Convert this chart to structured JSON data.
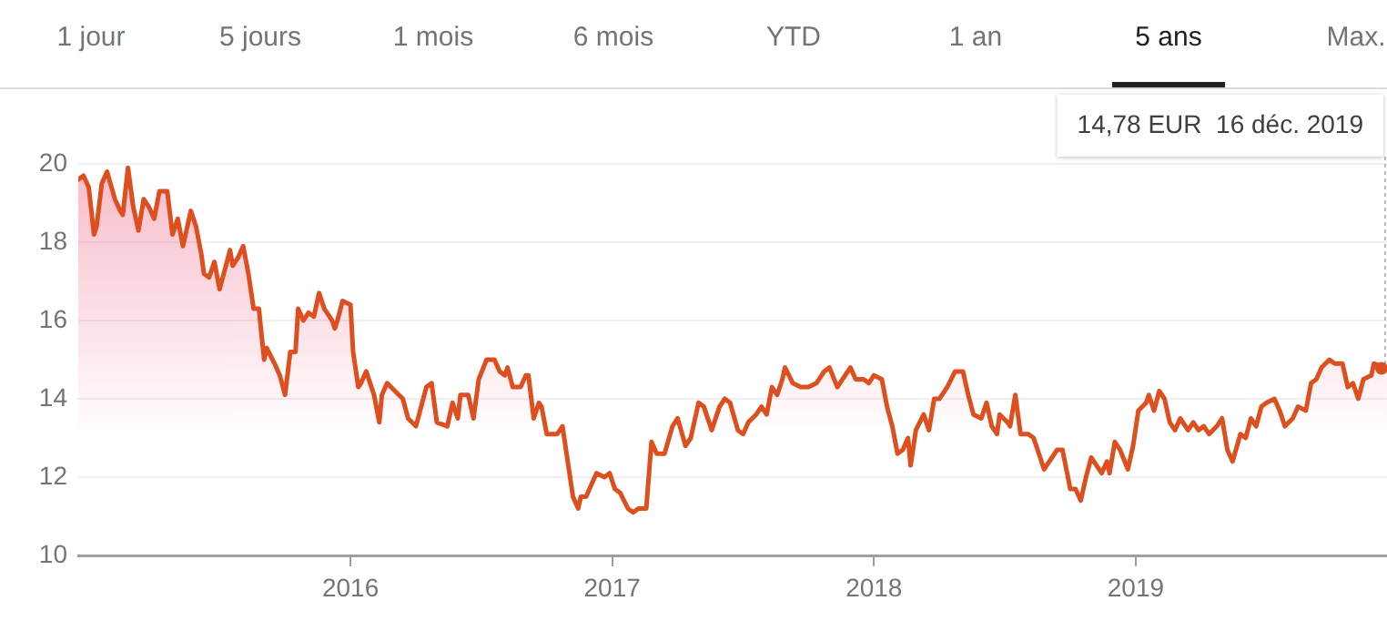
{
  "chart_data": {
    "type": "area",
    "annotations": [
      "1 jour",
      "5 jours",
      "1 mois",
      "6 mois",
      "YTD",
      "1 an",
      "5 ans",
      "Max.",
      {
        "text": "14,78 EUR  16 déc. 2019",
        "x": 2019.96,
        "y": 14.78
      }
    ],
    "xlim": [
      2014.96,
      2019.96
    ],
    "xticks": [
      2016,
      2017,
      2018,
      2019
    ],
    "ylim": [
      10,
      20
    ],
    "yticks": [
      10,
      12,
      14,
      16,
      18,
      20
    ],
    "grid": "y",
    "series": [
      {
        "color": "#dd4f1e",
        "x": [
          2014.96,
          2014.98,
          2015.0,
          2015.02,
          2015.03,
          2015.05,
          2015.07,
          2015.1,
          2015.12,
          2015.13,
          2015.15,
          2015.17,
          2015.19,
          2015.21,
          2015.23,
          2015.25,
          2015.27,
          2015.3,
          2015.32,
          2015.34,
          2015.36,
          2015.39,
          2015.41,
          2015.43,
          2015.44,
          2015.46,
          2015.48,
          2015.5,
          2015.52,
          2015.54,
          2015.55,
          2015.57,
          2015.59,
          2015.61,
          2015.63,
          2015.65,
          2015.67,
          2015.68,
          2015.71,
          2015.73,
          2015.75,
          2015.77,
          2015.79,
          2015.8,
          2015.82,
          2015.84,
          2015.86,
          2015.88,
          2015.9,
          2015.93,
          2015.94,
          2015.95,
          2015.97,
          2016.0,
          2016.01,
          2016.03,
          2016.04,
          2016.06,
          2016.09,
          2016.11,
          2016.12,
          2016.14,
          2016.17,
          2016.2,
          2016.22,
          2016.25,
          2016.27,
          2016.29,
          2016.31,
          2016.33,
          2016.37,
          2016.39,
          2016.41,
          2016.42,
          2016.45,
          2016.47,
          2016.49,
          2016.52,
          2016.55,
          2016.57,
          2016.59,
          2016.6,
          2016.62,
          2016.65,
          2016.67,
          2016.68,
          2016.7,
          2016.72,
          2016.73,
          2016.75,
          2016.79,
          2016.81,
          2016.83,
          2016.85,
          2016.87,
          2016.88,
          2016.9,
          2016.92,
          2016.94,
          2016.97,
          2016.99,
          2017.01,
          2017.03,
          2017.06,
          2017.08,
          2017.1,
          2017.13,
          2017.15,
          2017.17,
          2017.2,
          2017.23,
          2017.25,
          2017.28,
          2017.3,
          2017.33,
          2017.35,
          2017.38,
          2017.41,
          2017.43,
          2017.45,
          2017.48,
          2017.5,
          2017.52,
          2017.55,
          2017.57,
          2017.59,
          2017.61,
          2017.63,
          2017.65,
          2017.66,
          2017.69,
          2017.72,
          2017.75,
          2017.78,
          2017.81,
          2017.83,
          2017.86,
          2017.89,
          2017.91,
          2017.93,
          2017.96,
          2017.98,
          2018.0,
          2018.03,
          2018.05,
          2018.07,
          2018.09,
          2018.11,
          2018.13,
          2018.14,
          2018.16,
          2018.19,
          2018.21,
          2018.23,
          2018.25,
          2018.28,
          2018.31,
          2018.34,
          2018.36,
          2018.38,
          2018.41,
          2018.43,
          2018.45,
          2018.47,
          2018.48,
          2018.51,
          2018.52,
          2018.54,
          2018.56,
          2018.59,
          2018.61,
          2018.65,
          2018.68,
          2018.7,
          2018.72,
          2018.75,
          2018.77,
          2018.79,
          2018.81,
          2018.83,
          2018.86,
          2018.87,
          2018.89,
          2018.9,
          2018.92,
          2018.94,
          2018.97,
          2018.99,
          2019.01,
          2019.04,
          2019.05,
          2019.07,
          2019.09,
          2019.11,
          2019.13,
          2019.15,
          2019.17,
          2019.2,
          2019.22,
          2019.24,
          2019.26,
          2019.28,
          2019.31,
          2019.33,
          2019.35,
          2019.37,
          2019.4,
          2019.42,
          2019.44,
          2019.46,
          2019.48,
          2019.5,
          2019.53,
          2019.55,
          2019.57,
          2019.6,
          2019.62,
          2019.65,
          2019.67,
          2019.69,
          2019.71,
          2019.74,
          2019.76,
          2019.79,
          2019.81,
          2019.83,
          2019.85,
          2019.87,
          2019.9,
          2019.91,
          2019.96
        ],
        "values": [
          19.6,
          19.7,
          19.4,
          18.2,
          18.4,
          19.5,
          19.8,
          19.1,
          18.8,
          18.7,
          19.9,
          18.9,
          18.3,
          19.1,
          18.9,
          18.6,
          19.3,
          19.3,
          18.2,
          18.6,
          17.9,
          18.8,
          18.4,
          17.7,
          17.2,
          17.1,
          17.5,
          16.8,
          17.3,
          17.8,
          17.4,
          17.6,
          17.9,
          17.2,
          16.3,
          16.3,
          15.0,
          15.3,
          14.9,
          14.6,
          14.1,
          15.2,
          15.2,
          16.3,
          16.0,
          16.2,
          16.1,
          16.7,
          16.3,
          16.0,
          15.8,
          16.0,
          16.5,
          16.4,
          15.2,
          14.3,
          14.4,
          14.7,
          14.1,
          13.4,
          14.1,
          14.4,
          14.2,
          14.0,
          13.5,
          13.3,
          13.8,
          14.3,
          14.4,
          13.4,
          13.3,
          13.9,
          13.5,
          14.1,
          14.1,
          13.5,
          14.5,
          15.0,
          15.0,
          14.7,
          14.6,
          14.8,
          14.3,
          14.3,
          14.6,
          14.6,
          13.5,
          13.9,
          13.8,
          13.1,
          13.1,
          13.3,
          12.4,
          11.5,
          11.2,
          11.5,
          11.5,
          11.8,
          12.1,
          12.0,
          12.1,
          11.7,
          11.6,
          11.2,
          11.1,
          11.2,
          11.2,
          12.9,
          12.6,
          12.6,
          13.3,
          13.5,
          12.8,
          13.0,
          13.9,
          13.8,
          13.2,
          13.8,
          14.0,
          13.9,
          13.2,
          13.1,
          13.4,
          13.6,
          13.8,
          13.6,
          14.3,
          14.1,
          14.5,
          14.8,
          14.4,
          14.3,
          14.3,
          14.4,
          14.7,
          14.8,
          14.3,
          14.6,
          14.8,
          14.5,
          14.5,
          14.4,
          14.6,
          14.5,
          13.8,
          13.3,
          12.6,
          12.7,
          13.0,
          12.3,
          13.2,
          13.6,
          13.2,
          14.0,
          14.0,
          14.3,
          14.7,
          14.7,
          14.1,
          13.6,
          13.5,
          13.9,
          13.3,
          13.1,
          13.6,
          13.4,
          13.3,
          14.1,
          13.1,
          13.1,
          13.0,
          12.2,
          12.5,
          12.7,
          12.7,
          11.7,
          11.7,
          11.4,
          12.0,
          12.5,
          12.2,
          12.1,
          12.4,
          12.1,
          12.9,
          12.7,
          12.2,
          12.8,
          13.7,
          13.9,
          14.1,
          13.7,
          14.2,
          14.0,
          13.4,
          13.2,
          13.5,
          13.2,
          13.4,
          13.2,
          13.3,
          13.1,
          13.3,
          13.5,
          12.7,
          12.4,
          13.1,
          13.0,
          13.5,
          13.3,
          13.8,
          13.9,
          14.0,
          13.7,
          13.3,
          13.5,
          13.8,
          13.7,
          14.4,
          14.5,
          14.8,
          15.0,
          14.9,
          14.9,
          14.3,
          14.4,
          14.0,
          14.5,
          14.6,
          14.9,
          14.78
        ]
      }
    ]
  }
}
